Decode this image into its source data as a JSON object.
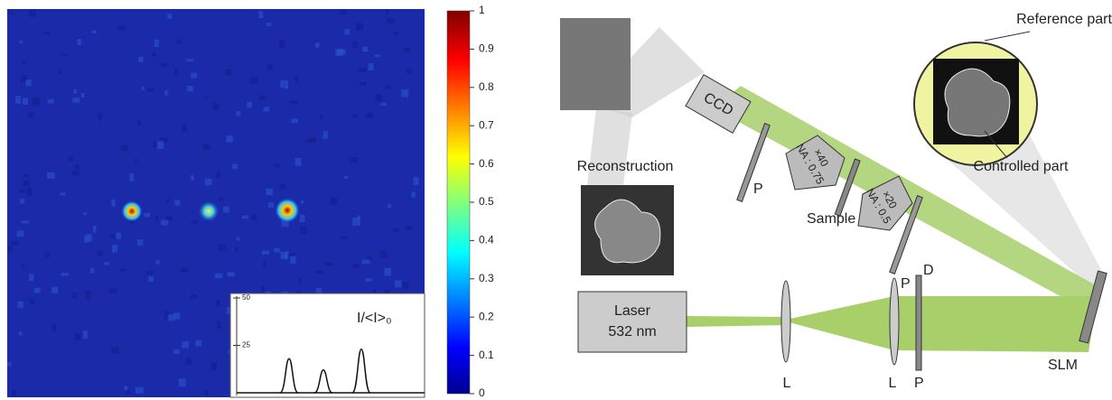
{
  "heatmap": {
    "colorbar": {
      "lim": [
        0,
        1
      ],
      "ticks": [
        0,
        0.1,
        0.2,
        0.3,
        0.4,
        0.5,
        0.6,
        0.7,
        0.8,
        0.9,
        1
      ]
    },
    "inset": {
      "label": "I/<I>₀",
      "ylim": [
        0,
        50
      ],
      "yticks": [
        25,
        50
      ],
      "peaks": [
        18,
        12,
        23
      ]
    }
  },
  "setup": {
    "reference": "Reference part",
    "controlled": "Controlled part",
    "ccd": "CCD",
    "reconstruction": "Reconstruction",
    "polarizer": "P",
    "objective1": {
      "mag": "×40",
      "na": "NA : 0.75"
    },
    "objective2": {
      "mag": "×20",
      "na": "NA : 0.5"
    },
    "sample": "Sample",
    "diaphragm": "D",
    "laser": [
      "Laser",
      "532 nm"
    ],
    "lens": "L",
    "slm": "SLM"
  }
}
